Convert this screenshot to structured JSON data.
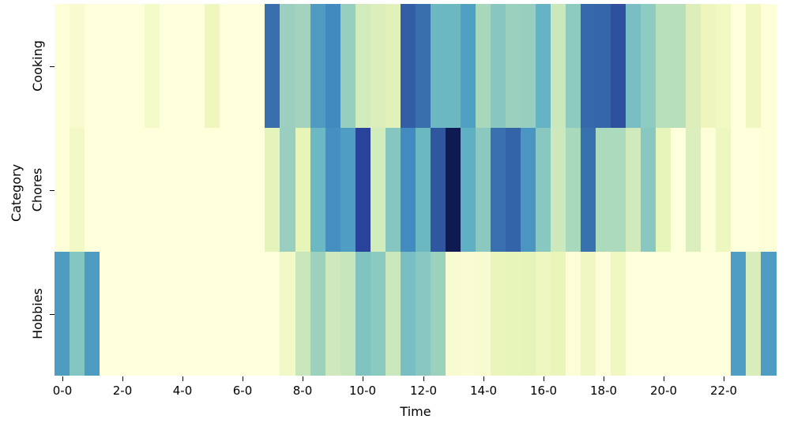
{
  "chart_data": {
    "type": "heatmap",
    "title": "",
    "xlabel": "Time",
    "ylabel": "Category",
    "colormap": "YlGnBu",
    "rows": [
      "Cooking",
      "Chores",
      "Hobbies"
    ],
    "columns": [
      "0-0",
      "0-30",
      "1-0",
      "1-30",
      "2-0",
      "2-30",
      "3-0",
      "3-30",
      "4-0",
      "4-30",
      "5-0",
      "5-30",
      "6-0",
      "6-30",
      "7-0",
      "7-30",
      "8-0",
      "8-30",
      "9-0",
      "9-30",
      "10-0",
      "10-30",
      "11-0",
      "11-30",
      "12-0",
      "12-30",
      "13-0",
      "13-30",
      "14-0",
      "14-30",
      "15-0",
      "15-30",
      "16-0",
      "16-30",
      "17-0",
      "17-30",
      "18-0",
      "18-30",
      "19-0",
      "19-30",
      "20-0",
      "20-30",
      "21-0",
      "21-30",
      "22-0",
      "22-30",
      "23-0",
      "23-30"
    ],
    "x_tick_labels": [
      "0-0",
      "2-0",
      "4-0",
      "6-0",
      "8-0",
      "10-0",
      "12-0",
      "14-0",
      "16-0",
      "18-0",
      "20-0",
      "22-0"
    ],
    "x_tick_indices": [
      0,
      4,
      8,
      12,
      16,
      20,
      24,
      28,
      32,
      36,
      40,
      44
    ],
    "colorbar": false,
    "cell_colors": {
      "Cooking": [
        "#fdfed8",
        "#f8fbcf",
        "#feffdb",
        "#feffdb",
        "#feffdb",
        "#feffdb",
        "#f5fac9",
        "#feffdb",
        "#feffdb",
        "#feffdb",
        "#eff7bf",
        "#feffdb",
        "#feffdb",
        "#feffdb",
        "#3a6fae",
        "#9ccfbf",
        "#a3d2bd",
        "#4f9bc2",
        "#418ac0",
        "#97cfbf",
        "#d2ebbc",
        "#dbeebb",
        "#e2f1ba",
        "#335ea6",
        "#3a6fae",
        "#6bb8c2",
        "#6cb8c1",
        "#50a0c4",
        "#a8d8bb",
        "#88c7c0",
        "#9ad0bd",
        "#96cebf",
        "#65b3c3",
        "#cbe8bc",
        "#8dcbc0",
        "#3568aa",
        "#3566a9",
        "#2f509e",
        "#78bec4",
        "#8ecbc0",
        "#b8e0bb",
        "#b7dfbb",
        "#deeebb",
        "#eef6be",
        "#f2f8c2",
        "#feffdb",
        "#f0f7bf",
        "#fdfed8"
      ],
      "Chores": [
        "#fdfed8",
        "#f3f9c6",
        "#feffdb",
        "#feffdb",
        "#feffdb",
        "#feffdb",
        "#feffdb",
        "#feffdb",
        "#feffdb",
        "#feffdb",
        "#feffdb",
        "#feffdb",
        "#feffdb",
        "#feffdb",
        "#e5f4bb",
        "#9acfbf",
        "#e8f5b8",
        "#6cb8c3",
        "#4590c1",
        "#509dc3",
        "#29429a",
        "#d3ecbb",
        "#85c7c0",
        "#428bc0",
        "#6cb8c1",
        "#2f579f",
        "#0d1b52",
        "#60b0c4",
        "#8bc9c0",
        "#3970af",
        "#3464a8",
        "#4a95c2",
        "#88c8c0",
        "#cde8bc",
        "#a9d9bc",
        "#3872ae",
        "#acdabc",
        "#acdabc",
        "#d0eabb",
        "#88c8c0",
        "#e6f5b9",
        "#feffdb",
        "#dbeebb",
        "#fdfed8",
        "#eff7c0",
        "#feffdb",
        "#feffdb",
        "#fdfed8"
      ],
      "Hobbies": [
        "#4f9cc3",
        "#83c5c1",
        "#4f9cc3",
        "#feffdb",
        "#feffdb",
        "#feffdb",
        "#feffdb",
        "#feffdb",
        "#feffdb",
        "#feffdb",
        "#feffdb",
        "#feffdb",
        "#feffdb",
        "#feffdb",
        "#feffdb",
        "#f3f9c6",
        "#c9e7bc",
        "#9cd1bd",
        "#cfe9bc",
        "#c8e6bc",
        "#80c4c1",
        "#8bcac0",
        "#cbe7bc",
        "#78bec3",
        "#88c8c0",
        "#9cd1bd",
        "#f8fbcf",
        "#f9fcd2",
        "#f8fbcf",
        "#e9f5b9",
        "#e8f5b9",
        "#e6f4ba",
        "#eff7c0",
        "#e9f5b9",
        "#fdfed8",
        "#f0f7c2",
        "#fdfed8",
        "#f0f7c0",
        "#feffdb",
        "#feffdb",
        "#feffdb",
        "#feffdb",
        "#feffdb",
        "#feffdb",
        "#feffdb",
        "#4f9dc3",
        "#d8edbb",
        "#4f9dc3"
      ]
    },
    "relative_values_0_to_1": {
      "Cooking": [
        0.0,
        0.02,
        0.0,
        0.0,
        0.0,
        0.0,
        0.03,
        0.0,
        0.0,
        0.0,
        0.05,
        0.0,
        0.0,
        0.0,
        0.75,
        0.4,
        0.38,
        0.6,
        0.65,
        0.4,
        0.22,
        0.19,
        0.16,
        0.8,
        0.75,
        0.5,
        0.5,
        0.58,
        0.35,
        0.44,
        0.39,
        0.41,
        0.52,
        0.24,
        0.42,
        0.77,
        0.78,
        0.85,
        0.47,
        0.42,
        0.31,
        0.31,
        0.18,
        0.08,
        0.06,
        0.0,
        0.07,
        0.0
      ],
      "Chores": [
        0.0,
        0.04,
        0.0,
        0.0,
        0.0,
        0.0,
        0.0,
        0.0,
        0.0,
        0.0,
        0.0,
        0.0,
        0.0,
        0.0,
        0.14,
        0.39,
        0.12,
        0.5,
        0.63,
        0.58,
        0.9,
        0.22,
        0.43,
        0.66,
        0.5,
        0.84,
        1.0,
        0.53,
        0.43,
        0.73,
        0.78,
        0.62,
        0.43,
        0.23,
        0.33,
        0.74,
        0.32,
        0.32,
        0.22,
        0.43,
        0.13,
        0.0,
        0.18,
        0.0,
        0.06,
        0.0,
        0.0,
        0.0
      ],
      "Hobbies": [
        0.58,
        0.45,
        0.58,
        0.0,
        0.0,
        0.0,
        0.0,
        0.0,
        0.0,
        0.0,
        0.0,
        0.0,
        0.0,
        0.0,
        0.0,
        0.04,
        0.26,
        0.37,
        0.24,
        0.26,
        0.46,
        0.43,
        0.25,
        0.47,
        0.43,
        0.37,
        0.02,
        0.02,
        0.02,
        0.12,
        0.12,
        0.13,
        0.07,
        0.12,
        0.0,
        0.06,
        0.0,
        0.07,
        0.0,
        0.0,
        0.0,
        0.0,
        0.0,
        0.0,
        0.0,
        0.58,
        0.19,
        0.58
      ]
    }
  },
  "axes": {
    "xlabel": "Time",
    "ylabel": "Category",
    "y_tick_labels": [
      "Cooking",
      "Chores",
      "Hobbies"
    ],
    "x_tick_labels": [
      "0-0",
      "2-0",
      "4-0",
      "6-0",
      "8-0",
      "10-0",
      "12-0",
      "14-0",
      "16-0",
      "18-0",
      "20-0",
      "22-0"
    ]
  }
}
